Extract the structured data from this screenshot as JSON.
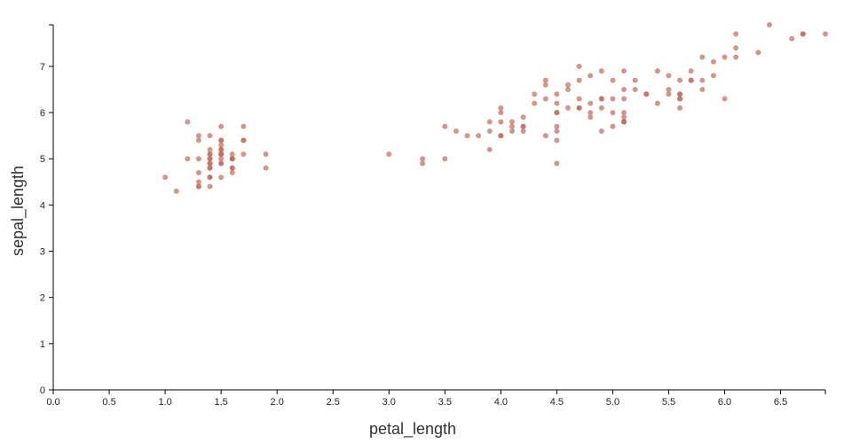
{
  "chart_data": {
    "type": "scatter",
    "xlabel": "petal_length",
    "ylabel": "sepal_length",
    "xlim": [
      0,
      6.9
    ],
    "ylim": [
      0,
      7.9
    ],
    "x_ticks": [
      "0.0",
      "0.5",
      "1.0",
      "1.5",
      "2.0",
      "2.5",
      "3.0",
      "3.5",
      "4.0",
      "4.5",
      "5.0",
      "5.5",
      "6.0",
      "6.5"
    ],
    "y_ticks": [
      "0",
      "1",
      "2",
      "3",
      "4",
      "5",
      "6",
      "7"
    ],
    "grid": false,
    "point_color": "#c0695a",
    "point_opacity": 0.7,
    "points": [
      [
        1.4,
        5.1
      ],
      [
        1.4,
        4.9
      ],
      [
        1.3,
        4.7
      ],
      [
        1.5,
        4.6
      ],
      [
        1.4,
        5.0
      ],
      [
        1.7,
        5.4
      ],
      [
        1.4,
        4.6
      ],
      [
        1.5,
        5.0
      ],
      [
        1.4,
        4.4
      ],
      [
        1.5,
        4.9
      ],
      [
        1.5,
        5.4
      ],
      [
        1.6,
        4.8
      ],
      [
        1.4,
        4.8
      ],
      [
        1.1,
        4.3
      ],
      [
        1.2,
        5.8
      ],
      [
        1.5,
        5.7
      ],
      [
        1.3,
        5.4
      ],
      [
        1.4,
        5.1
      ],
      [
        1.7,
        5.7
      ],
      [
        1.5,
        5.1
      ],
      [
        1.7,
        5.4
      ],
      [
        1.5,
        5.1
      ],
      [
        1.0,
        4.6
      ],
      [
        1.7,
        5.1
      ],
      [
        1.9,
        4.8
      ],
      [
        1.6,
        5.0
      ],
      [
        1.6,
        5.0
      ],
      [
        1.5,
        5.2
      ],
      [
        1.4,
        5.2
      ],
      [
        1.6,
        4.7
      ],
      [
        1.6,
        4.8
      ],
      [
        1.5,
        5.4
      ],
      [
        1.5,
        5.2
      ],
      [
        1.4,
        5.5
      ],
      [
        1.5,
        4.9
      ],
      [
        1.2,
        5.0
      ],
      [
        1.3,
        5.5
      ],
      [
        1.4,
        4.9
      ],
      [
        1.3,
        4.4
      ],
      [
        1.5,
        5.1
      ],
      [
        1.3,
        5.0
      ],
      [
        1.3,
        4.5
      ],
      [
        1.3,
        4.4
      ],
      [
        1.6,
        5.0
      ],
      [
        1.9,
        5.1
      ],
      [
        1.4,
        4.8
      ],
      [
        1.6,
        5.1
      ],
      [
        1.4,
        4.6
      ],
      [
        1.5,
        5.3
      ],
      [
        1.4,
        5.0
      ],
      [
        4.7,
        7.0
      ],
      [
        4.5,
        6.4
      ],
      [
        4.9,
        6.9
      ],
      [
        4.0,
        5.5
      ],
      [
        4.6,
        6.5
      ],
      [
        4.5,
        5.7
      ],
      [
        4.7,
        6.3
      ],
      [
        3.3,
        4.9
      ],
      [
        4.6,
        6.6
      ],
      [
        3.9,
        5.2
      ],
      [
        3.5,
        5.0
      ],
      [
        4.2,
        5.9
      ],
      [
        4.0,
        6.0
      ],
      [
        4.7,
        6.1
      ],
      [
        3.6,
        5.6
      ],
      [
        4.4,
        6.7
      ],
      [
        4.5,
        5.6
      ],
      [
        4.1,
        5.8
      ],
      [
        4.5,
        6.2
      ],
      [
        3.9,
        5.6
      ],
      [
        4.8,
        5.9
      ],
      [
        4.0,
        6.1
      ],
      [
        4.9,
        6.3
      ],
      [
        4.7,
        6.1
      ],
      [
        4.3,
        6.4
      ],
      [
        4.4,
        6.6
      ],
      [
        4.8,
        6.8
      ],
      [
        5.0,
        6.7
      ],
      [
        4.5,
        6.0
      ],
      [
        3.5,
        5.7
      ],
      [
        3.8,
        5.5
      ],
      [
        3.7,
        5.5
      ],
      [
        3.9,
        5.8
      ],
      [
        5.1,
        6.0
      ],
      [
        4.5,
        5.4
      ],
      [
        4.5,
        6.0
      ],
      [
        4.7,
        6.7
      ],
      [
        4.4,
        6.3
      ],
      [
        4.1,
        5.6
      ],
      [
        4.0,
        5.5
      ],
      [
        4.4,
        5.5
      ],
      [
        4.6,
        6.1
      ],
      [
        4.0,
        5.8
      ],
      [
        3.3,
        5.0
      ],
      [
        4.2,
        5.6
      ],
      [
        4.2,
        5.7
      ],
      [
        4.2,
        5.7
      ],
      [
        4.3,
        6.2
      ],
      [
        3.0,
        5.1
      ],
      [
        4.1,
        5.7
      ],
      [
        6.0,
        6.3
      ],
      [
        5.1,
        5.8
      ],
      [
        5.9,
        7.1
      ],
      [
        5.6,
        6.3
      ],
      [
        5.8,
        6.5
      ],
      [
        6.6,
        7.6
      ],
      [
        4.5,
        4.9
      ],
      [
        6.3,
        7.3
      ],
      [
        5.8,
        6.7
      ],
      [
        6.1,
        7.2
      ],
      [
        5.1,
        6.5
      ],
      [
        5.3,
        6.4
      ],
      [
        5.5,
        6.8
      ],
      [
        5.0,
        5.7
      ],
      [
        5.1,
        5.8
      ],
      [
        5.3,
        6.4
      ],
      [
        5.5,
        6.5
      ],
      [
        6.7,
        7.7
      ],
      [
        6.9,
        7.7
      ],
      [
        5.0,
        6.0
      ],
      [
        5.7,
        6.9
      ],
      [
        4.9,
        5.6
      ],
      [
        6.7,
        7.7
      ],
      [
        4.9,
        6.3
      ],
      [
        5.7,
        6.7
      ],
      [
        6.0,
        7.2
      ],
      [
        4.8,
        6.2
      ],
      [
        4.9,
        6.1
      ],
      [
        5.6,
        6.4
      ],
      [
        5.8,
        7.2
      ],
      [
        6.1,
        7.4
      ],
      [
        6.4,
        7.9
      ],
      [
        5.6,
        6.4
      ],
      [
        5.1,
        6.3
      ],
      [
        5.6,
        6.1
      ],
      [
        6.1,
        7.7
      ],
      [
        5.6,
        6.3
      ],
      [
        5.5,
        6.4
      ],
      [
        4.8,
        6.0
      ],
      [
        5.4,
        6.9
      ],
      [
        5.6,
        6.7
      ],
      [
        5.1,
        6.9
      ],
      [
        5.1,
        5.8
      ],
      [
        5.9,
        6.8
      ],
      [
        5.7,
        6.7
      ],
      [
        5.2,
        6.7
      ],
      [
        5.0,
        6.3
      ],
      [
        5.2,
        6.5
      ],
      [
        5.4,
        6.2
      ],
      [
        5.1,
        5.9
      ]
    ]
  }
}
